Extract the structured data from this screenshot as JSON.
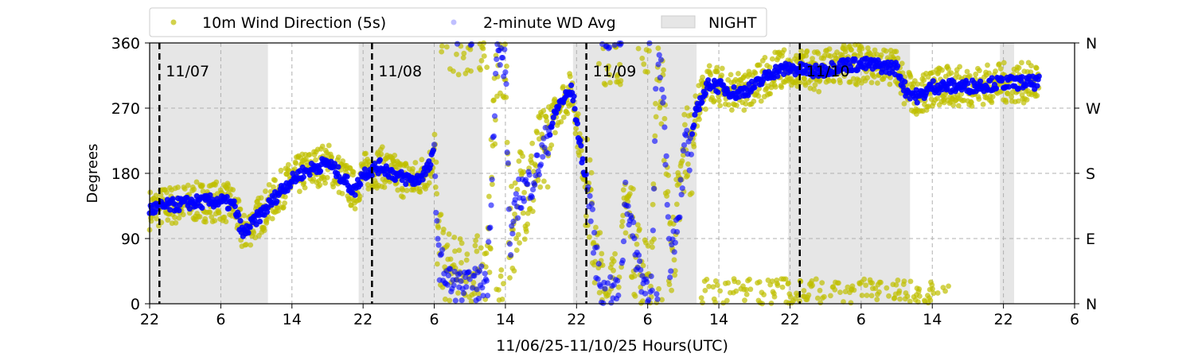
{
  "chart_data": {
    "type": "scatter",
    "xlabel": "11/06/25-11/10/25  Hours(UTC)",
    "ylabel": "Degrees",
    "x_unit": "hours since 11/06 22:00 UTC",
    "xlim": [
      0,
      104
    ],
    "ylim": [
      0,
      360
    ],
    "x_tick_labels": [
      "22",
      "6",
      "14",
      "22",
      "6",
      "14",
      "22",
      "6",
      "14",
      "22",
      "6",
      "14",
      "22",
      "6"
    ],
    "y_ticks": [
      0,
      90,
      180,
      270,
      360
    ],
    "y_tick_labels": [
      "0",
      "90",
      "180",
      "270",
      "360"
    ],
    "right_tick_labels": [
      "N",
      "E",
      "S",
      "W",
      "N"
    ],
    "grid": true,
    "legend_position": "top-left, above plot",
    "legend": [
      "10m Wind Direction (5s)",
      "2-minute WD Avg",
      "NIGHT"
    ],
    "day_markers": [
      {
        "hour": 1.1,
        "label": "11/07"
      },
      {
        "hour": 25.0,
        "label": "11/08"
      },
      {
        "hour": 49.1,
        "label": "11/09"
      },
      {
        "hour": 73.1,
        "label": "11/10"
      }
    ],
    "night_periods": [
      [
        0,
        13.3
      ],
      [
        23.5,
        37.4
      ],
      [
        47.6,
        61.5
      ],
      [
        71.8,
        85.5
      ],
      [
        95.6,
        97.2
      ]
    ],
    "series": [
      {
        "name": "2-minute WD Avg",
        "color": "#0000ff",
        "points": [
          [
            0,
            130
          ],
          [
            2,
            135
          ],
          [
            5,
            140
          ],
          [
            8,
            142
          ],
          [
            9.5,
            135
          ],
          [
            10.5,
            95
          ],
          [
            11.5,
            110
          ],
          [
            13,
            130
          ],
          [
            15,
            160
          ],
          [
            17,
            180
          ],
          [
            19,
            190
          ],
          [
            20,
            195
          ],
          [
            22,
            170
          ],
          [
            23,
            155
          ],
          [
            24,
            180
          ],
          [
            26,
            190
          ],
          [
            28,
            175
          ],
          [
            30,
            170
          ],
          [
            31.5,
            190
          ],
          [
            32,
            210
          ],
          [
            32.5,
            60
          ],
          [
            34,
            25
          ],
          [
            36,
            20
          ],
          [
            38,
            35
          ],
          [
            39,
            345
          ],
          [
            40,
            330
          ],
          [
            40.5,
            80
          ],
          [
            41.5,
            150
          ],
          [
            43,
            170
          ],
          [
            44,
            200
          ],
          [
            45,
            240
          ],
          [
            46,
            275
          ],
          [
            47.5,
            295
          ],
          [
            48.5,
            210
          ],
          [
            49.5,
            140
          ],
          [
            50.2,
            60
          ],
          [
            51,
            12
          ],
          [
            53,
            12
          ],
          [
            53.5,
            160
          ],
          [
            54.5,
            80
          ],
          [
            55.5,
            30
          ],
          [
            56.5,
            20
          ],
          [
            57,
            350
          ],
          [
            57.7,
            300
          ],
          [
            58.5,
            60
          ],
          [
            59.5,
            130
          ],
          [
            60.3,
            230
          ],
          [
            60.7,
            200
          ],
          [
            61.5,
            270
          ],
          [
            63,
            305
          ],
          [
            66,
            290
          ],
          [
            68,
            300
          ],
          [
            70,
            320
          ],
          [
            72,
            325
          ],
          [
            75,
            320
          ],
          [
            78,
            330
          ],
          [
            81,
            330
          ],
          [
            84,
            325
          ],
          [
            85,
            295
          ],
          [
            86.5,
            285
          ],
          [
            88,
            300
          ],
          [
            92,
            300
          ],
          [
            96,
            305
          ],
          [
            100,
            305
          ]
        ]
      },
      {
        "name": "10m Wind Direction (5s)",
        "color": "#bfbf00",
        "description_of_values": "5-second readings scattered roughly ±30° around the 2-minute average, with a low cluster near 0–40° from hour 62 to 90"
      }
    ]
  }
}
